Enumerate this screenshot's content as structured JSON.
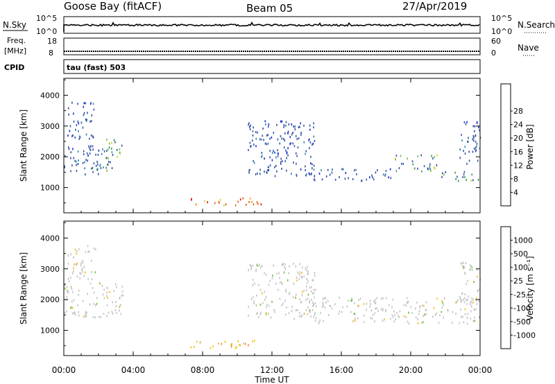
{
  "header": {
    "station": "Goose Bay (fitACF)",
    "beam": "Beam 05",
    "date": "27/Apr/2019"
  },
  "top_panels": {
    "nsky": {
      "label": "N.Sky",
      "ticks": [
        "10^5",
        "10^0"
      ],
      "right_ticks": [
        "10^5",
        "10^0"
      ],
      "right_label": "N.Search"
    },
    "freq": {
      "label_line1": "Freq.",
      "label_line2": "[MHz]",
      "ticks": [
        "18",
        "8"
      ],
      "right_ticks": [
        "60",
        "0"
      ],
      "right_label": "Nave"
    },
    "cpid": {
      "label": "CPID",
      "value": "tau (fast) 503"
    }
  },
  "chart_data": [
    {
      "type": "heatmap",
      "name": "power",
      "ylabel": "Slant Range [km]",
      "xlabel": "",
      "x_ticks": [
        "00:00",
        "04:00",
        "08:00",
        "12:00",
        "16:00",
        "20:00",
        "00:00"
      ],
      "x_range_hours": [
        0,
        24
      ],
      "y_ticks": [
        1000,
        2000,
        3000,
        4000
      ],
      "y_range_km": [
        180,
        4550
      ],
      "colorbar": {
        "label": "Power [dB]",
        "ticks": [
          4,
          8,
          12,
          16,
          20,
          24,
          28
        ]
      },
      "scatter_bands": [
        {
          "t_start": 0.0,
          "t_end": 2.8,
          "r_start": 1450,
          "r_end": 2400,
          "level": "low"
        },
        {
          "t_start": 1.4,
          "t_end": 2.6,
          "r_start": 1500,
          "r_end": 1800,
          "level": "mid"
        },
        {
          "t_start": 2.4,
          "t_end": 3.4,
          "r_start": 1800,
          "r_end": 2600,
          "level": "mid"
        },
        {
          "t_start": 0.2,
          "t_end": 1.8,
          "r_start": 2600,
          "r_end": 3800,
          "level": "low"
        },
        {
          "t_start": 7.3,
          "t_end": 11.6,
          "r_start": 450,
          "r_end": 700,
          "level": "high"
        },
        {
          "t_start": 10.6,
          "t_end": 14.5,
          "r_start": 1400,
          "r_end": 3200,
          "level": "low"
        },
        {
          "t_start": 14.0,
          "t_end": 19.0,
          "r_start": 1250,
          "r_end": 1650,
          "level": "low"
        },
        {
          "t_start": 19.0,
          "t_end": 21.5,
          "r_start": 1550,
          "r_end": 2100,
          "level": "mid"
        },
        {
          "t_start": 21.5,
          "t_end": 24.0,
          "r_start": 1250,
          "r_end": 1550,
          "level": "mid"
        },
        {
          "t_start": 22.8,
          "t_end": 24.0,
          "r_start": 1800,
          "r_end": 3300,
          "level": "low"
        }
      ]
    },
    {
      "type": "heatmap",
      "name": "velocity",
      "ylabel": "Slant Range [km]",
      "xlabel": "Time UT",
      "x_ticks": [
        "00:00",
        "04:00",
        "08:00",
        "12:00",
        "16:00",
        "20:00",
        "00:00"
      ],
      "x_range_hours": [
        0,
        24
      ],
      "y_ticks": [
        1000,
        2000,
        3000,
        4000
      ],
      "y_range_km": [
        180,
        4550
      ],
      "colorbar": {
        "label": "Velocity [m s⁻¹]",
        "ticks": [
          1000,
          500,
          100,
          25,
          -25,
          -100,
          -500,
          -1000
        ]
      },
      "scatter_bands": [
        {
          "t_start": 0.0,
          "t_end": 3.4,
          "r_start": 1450,
          "r_end": 2600,
          "level": "ground"
        },
        {
          "t_start": 0.2,
          "t_end": 1.8,
          "r_start": 2600,
          "r_end": 3800,
          "level": "ground"
        },
        {
          "t_start": 7.3,
          "t_end": 11.6,
          "r_start": 450,
          "r_end": 700,
          "level": "neg"
        },
        {
          "t_start": 10.6,
          "t_end": 14.5,
          "r_start": 1400,
          "r_end": 3200,
          "level": "ground"
        },
        {
          "t_start": 14.0,
          "t_end": 24.0,
          "r_start": 1250,
          "r_end": 2100,
          "level": "ground"
        },
        {
          "t_start": 22.8,
          "t_end": 24.0,
          "r_start": 1800,
          "r_end": 3300,
          "level": "ground"
        }
      ]
    }
  ],
  "colors": {
    "power_scale": [
      "#1b2fd4",
      "#3656a8",
      "#3b86a8",
      "#3f9a5c",
      "#73c23f",
      "#cfd42c",
      "#f4a012",
      "#ea5a10",
      "#e01010"
    ],
    "velocity_scale": [
      "#2436b8",
      "#3f78c0",
      "#33925c",
      "#6cc434",
      "#c4c4c4",
      "#f2c11c",
      "#f08a10",
      "#ea4a10",
      "#e01010"
    ]
  }
}
